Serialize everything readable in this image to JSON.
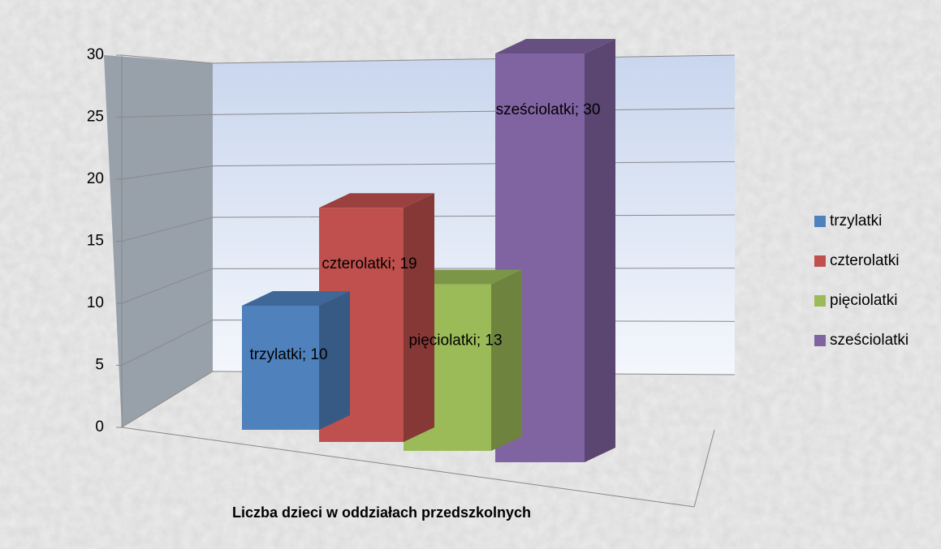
{
  "chart_data": {
    "type": "bar3d",
    "xlabel": "Liczba dzieci w oddziałach przedszkolnych",
    "categories": [
      "Liczba dzieci w oddziałach przedszkolnych"
    ],
    "series": [
      {
        "name": "trzylatki",
        "color": "#4f81bd",
        "values": [
          10
        ],
        "value_labels": [
          "trzylatki; 10"
        ]
      },
      {
        "name": "czterolatki",
        "color": "#c0504d",
        "values": [
          19
        ],
        "value_labels": [
          "czterolatki; 19"
        ]
      },
      {
        "name": "pięciolatki",
        "color": "#9bbb59",
        "values": [
          13
        ],
        "value_labels": [
          "pięciolatki; 13"
        ]
      },
      {
        "name": "sześciolatki",
        "color": "#8064a2",
        "values": [
          30
        ],
        "value_labels": [
          "sześciolatki; 30"
        ]
      }
    ],
    "ylim": [
      0,
      30
    ],
    "yticks": [
      0,
      5,
      10,
      15,
      20,
      25,
      30
    ],
    "grid": true,
    "legend": "right"
  }
}
